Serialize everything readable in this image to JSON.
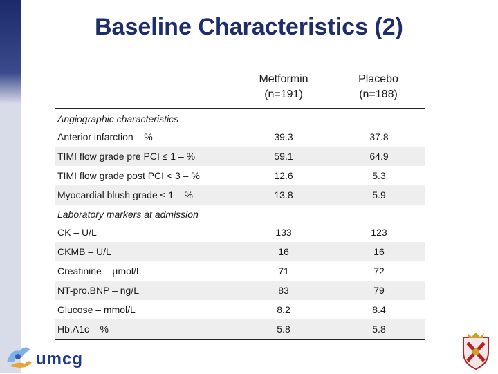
{
  "title": "Baseline Characteristics (2)",
  "columns": {
    "metformin": [
      "Metformin",
      "(n=191)"
    ],
    "placebo": [
      "Placebo",
      "(n=188)"
    ]
  },
  "sections": [
    {
      "heading": "Angiographic characteristics",
      "rows": [
        {
          "label": "Anterior infarction – %",
          "metformin": "39.3",
          "placebo": "37.8"
        },
        {
          "label": "TIMI flow grade pre PCI ≤ 1 – %",
          "metformin": "59.1",
          "placebo": "64.9"
        },
        {
          "label": "TIMI flow grade post PCI < 3 – %",
          "metformin": "12.6",
          "placebo": "5.3"
        },
        {
          "label": "Myocardial blush grade ≤ 1 – %",
          "metformin": "13.8",
          "placebo": "5.9"
        }
      ]
    },
    {
      "heading": "Laboratory markers at admission",
      "rows": [
        {
          "label": "CK – U/L",
          "metformin": "133",
          "placebo": "123"
        },
        {
          "label": "CKMB – U/L",
          "metformin": "16",
          "placebo": "16"
        },
        {
          "label": "Creatinine – µmol/L",
          "metformin": "71",
          "placebo": "72"
        },
        {
          "label": "NT-pro.BNP – ng/L",
          "metformin": "83",
          "placebo": "79"
        },
        {
          "label": "Glucose – mmol/L",
          "metformin": "8.2",
          "placebo": "8.4"
        },
        {
          "label": "Hb.A1c – %",
          "metformin": "5.8",
          "placebo": "5.8"
        }
      ]
    }
  ],
  "logo": {
    "text": "umcg",
    "icon": "umcg-logo-icon"
  },
  "crest": {
    "icon": "university-crest-icon"
  },
  "colors": {
    "title": "#1f2d6b",
    "sidebar": "#1c2a6b",
    "row_shade": "#eeeeee"
  }
}
